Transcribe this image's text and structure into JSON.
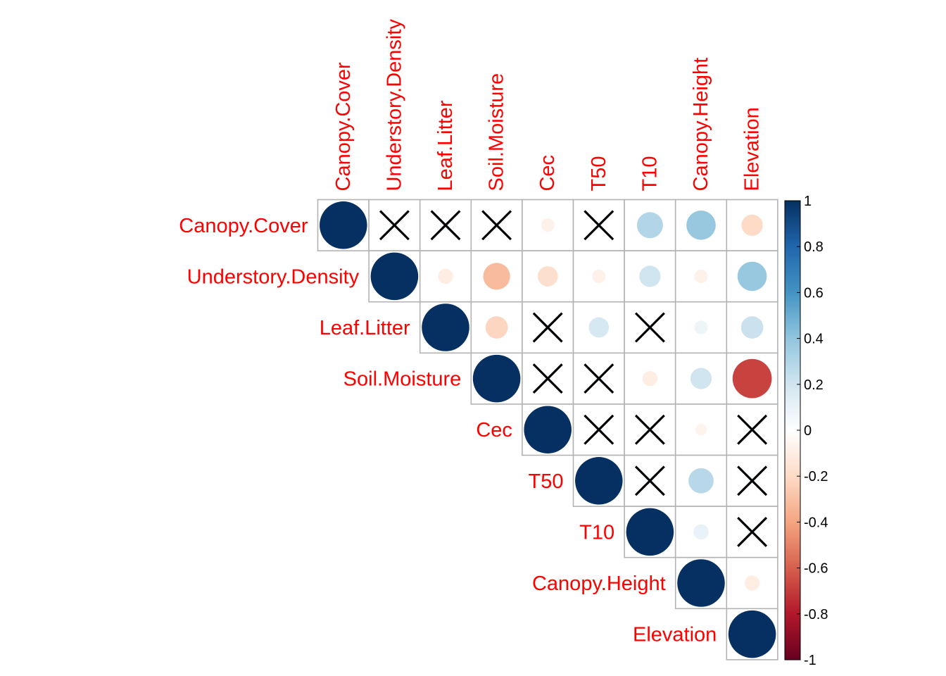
{
  "chart_data": {
    "type": "heatmap",
    "style": "correlation-matrix-circles-upper-triangle",
    "variables": [
      "Canopy.Cover",
      "Understory.Density",
      "Leaf.Litter",
      "Soil.Moisture",
      "Cec",
      "T50",
      "T10",
      "Canopy.Height",
      "Elevation"
    ],
    "correlations": [
      [
        1.0,
        0.05,
        0.05,
        0.05,
        -0.08,
        0.05,
        0.3,
        0.38,
        -0.2
      ],
      [
        null,
        1.0,
        -0.1,
        -0.32,
        -0.18,
        -0.08,
        0.2,
        -0.08,
        0.38
      ],
      [
        null,
        null,
        1.0,
        -0.22,
        0.05,
        0.18,
        0.05,
        0.08,
        0.22
      ],
      [
        null,
        null,
        null,
        1.0,
        0.05,
        0.05,
        -0.1,
        0.2,
        -0.68
      ],
      [
        null,
        null,
        null,
        null,
        1.0,
        0.05,
        0.05,
        -0.06,
        0.05
      ],
      [
        null,
        null,
        null,
        null,
        null,
        1.0,
        0.05,
        0.28,
        0.05
      ],
      [
        null,
        null,
        null,
        null,
        null,
        null,
        1.0,
        0.1,
        0.05
      ],
      [
        null,
        null,
        null,
        null,
        null,
        null,
        null,
        1.0,
        -0.1
      ],
      [
        null,
        null,
        null,
        null,
        null,
        null,
        null,
        null,
        1.0
      ]
    ],
    "insignificant": [
      [
        0,
        1
      ],
      [
        0,
        2
      ],
      [
        0,
        3
      ],
      [
        0,
        5
      ],
      [
        2,
        4
      ],
      [
        2,
        6
      ],
      [
        3,
        4
      ],
      [
        3,
        5
      ],
      [
        4,
        5
      ],
      [
        4,
        6
      ],
      [
        4,
        8
      ],
      [
        5,
        6
      ],
      [
        5,
        8
      ],
      [
        6,
        8
      ]
    ],
    "colorbar": {
      "range": [
        -1,
        1
      ],
      "ticks": [
        "1",
        "0.8",
        "0.6",
        "0.4",
        "0.2",
        "0",
        "-0.2",
        "-0.4",
        "-0.6",
        "-0.8",
        "-1"
      ]
    },
    "colors": {
      "label": "#ff0000",
      "grid": "#b3b3b3",
      "cross": "#000000",
      "scale": [
        "#67001F",
        "#B2182B",
        "#D6604D",
        "#F4A582",
        "#FDDBC7",
        "#FFFFFF",
        "#D1E5F0",
        "#92C5DE",
        "#4393C3",
        "#2166AC",
        "#053061"
      ]
    }
  }
}
